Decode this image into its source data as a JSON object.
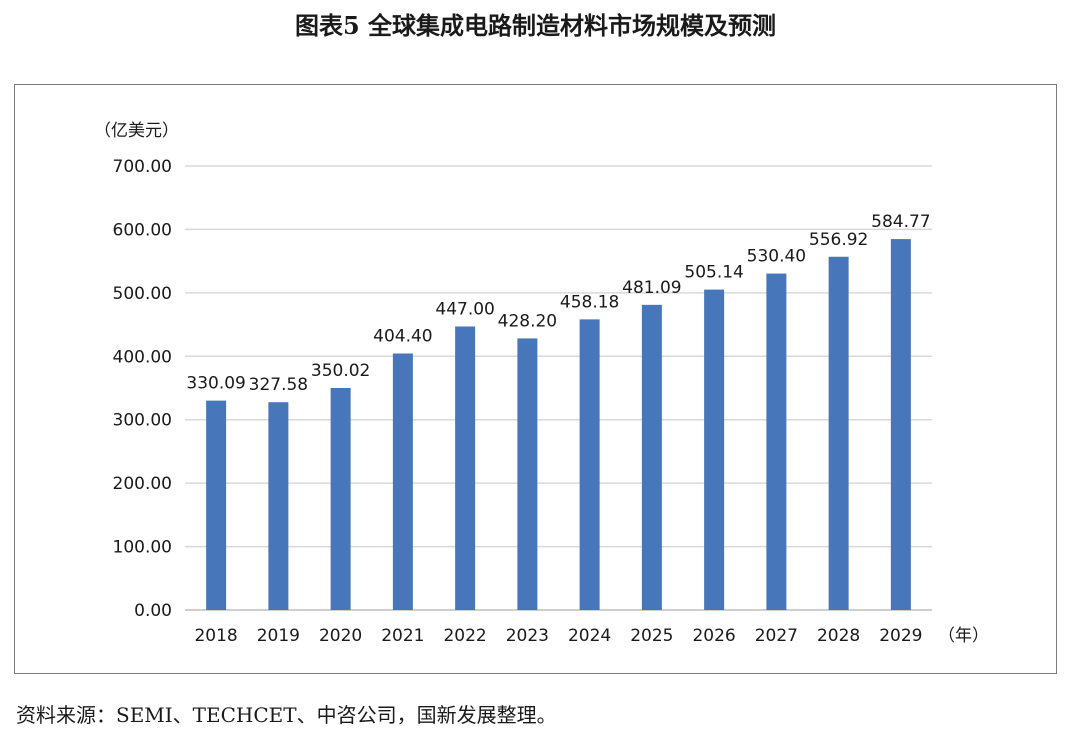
{
  "figure": {
    "title": "图表5  全球集成电路制造材料市场规模及预测",
    "source": "资料来源：SEMI、TECHCET、中咨公司，国新发展整理。"
  },
  "chart_data": {
    "type": "bar",
    "title": "",
    "ylabel": "（亿美元）",
    "xlabel": "（年）",
    "categories": [
      "2018",
      "2019",
      "2020",
      "2021",
      "2022",
      "2023",
      "2024",
      "2025",
      "2026",
      "2027",
      "2028",
      "2029"
    ],
    "values": [
      330.09,
      327.58,
      350.02,
      404.4,
      447.0,
      428.2,
      458.18,
      481.09,
      505.14,
      530.4,
      556.92,
      584.77
    ],
    "value_labels": [
      "330.09",
      "327.58",
      "350.02",
      "404.40",
      "447.00",
      "428.20",
      "458.18",
      "481.09",
      "505.14",
      "530.40",
      "556.92",
      "584.77"
    ],
    "ylim": [
      0,
      700
    ],
    "yticks": [
      0,
      100,
      200,
      300,
      400,
      500,
      600,
      700
    ],
    "ytick_labels": [
      "0.00",
      "100.00",
      "200.00",
      "300.00",
      "400.00",
      "500.00",
      "600.00",
      "700.00"
    ],
    "grid": true,
    "legend": "none",
    "bar_color": "#4777BA",
    "grid_color": "#D9D9D9"
  }
}
